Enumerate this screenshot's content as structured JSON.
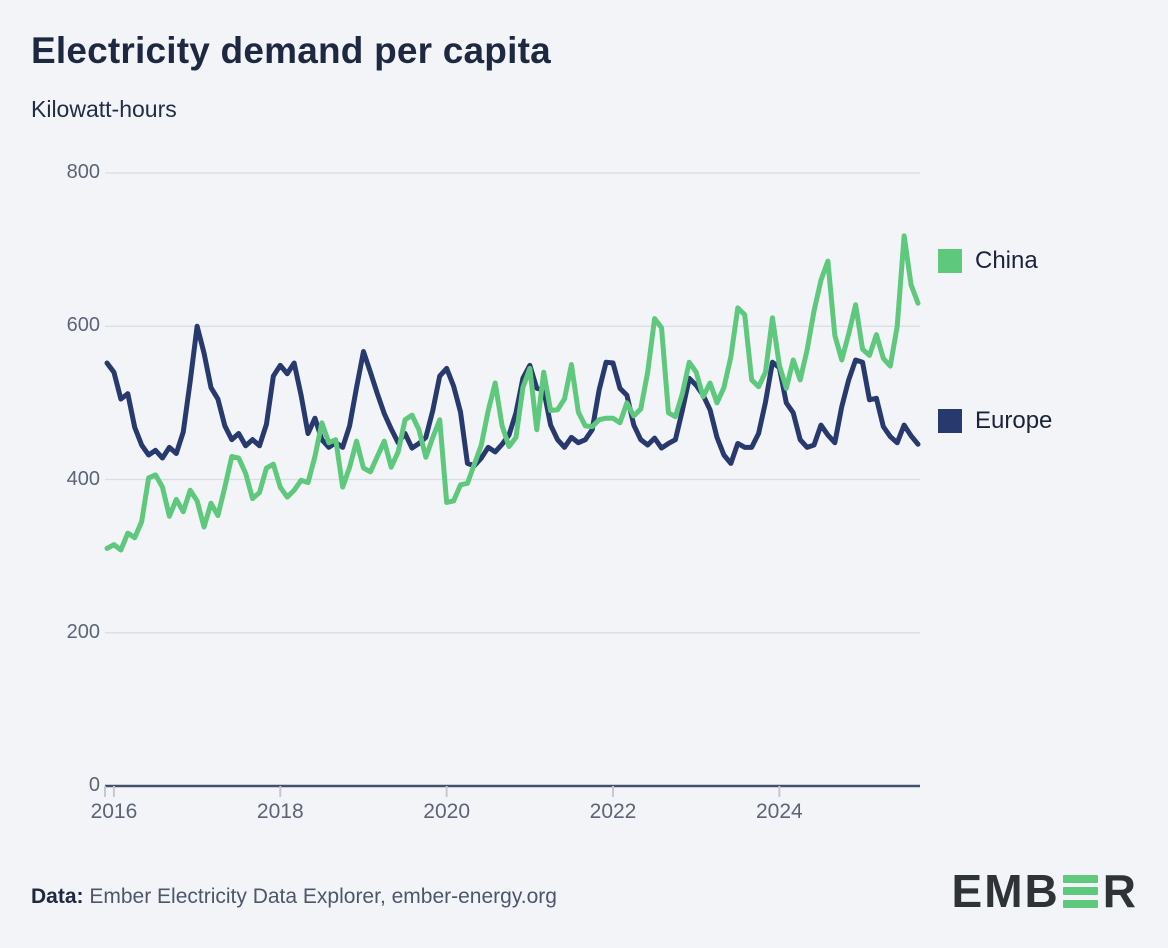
{
  "title": "Electricity demand per capita",
  "subtitle": "Kilowatt-hours",
  "legend": {
    "china": {
      "label": "China",
      "color": "#5ec87d"
    },
    "europe": {
      "label": "Europe",
      "color": "#28396e"
    }
  },
  "footer": {
    "prefix": "Data:",
    "text": " Ember Electricity Data Explorer, ember-energy.org"
  },
  "logo": {
    "text_start": "EMB",
    "text_end": "R",
    "bar_color": "#5ec87d",
    "text_color": "#2e3338"
  },
  "chart_data": {
    "type": "line",
    "title": "Electricity demand per capita",
    "ylabel": "Kilowatt-hours",
    "x_start_month": "2015-12",
    "x_end_month": "2025-09",
    "x_frequency": "monthly",
    "ylim": [
      0,
      800
    ],
    "y_ticks": [
      0,
      200,
      400,
      600,
      800
    ],
    "x_tick_labels": [
      "2016",
      "2018",
      "2020",
      "2022",
      "2024"
    ],
    "x_tick_indices": [
      1,
      25,
      49,
      73,
      97
    ],
    "grid": "horizontal",
    "legend_position": "right",
    "colors": {
      "grid": "#d9dce3",
      "axis": "#43506b",
      "tick": "#c3c8d2"
    },
    "series": [
      {
        "name": "Europe",
        "color": "#28396e",
        "values": [
          552,
          540,
          505,
          512,
          468,
          445,
          432,
          438,
          428,
          442,
          434,
          462,
          528,
          600,
          565,
          520,
          505,
          470,
          452,
          460,
          444,
          452,
          444,
          472,
          535,
          549,
          538,
          552,
          510,
          460,
          480,
          452,
          442,
          448,
          442,
          470,
          520,
          567,
          540,
          512,
          486,
          466,
          448,
          460,
          441,
          447,
          455,
          490,
          535,
          545,
          522,
          488,
          421,
          418,
          428,
          442,
          436,
          446,
          458,
          487,
          532,
          549,
          519,
          517,
          471,
          452,
          442,
          455,
          448,
          452,
          465,
          517,
          553,
          552,
          519,
          510,
          471,
          452,
          445,
          454,
          441,
          447,
          452,
          490,
          532,
          523,
          510,
          491,
          455,
          432,
          421,
          447,
          442,
          442,
          460,
          501,
          553,
          546,
          500,
          487,
          452,
          442,
          445,
          471,
          458,
          448,
          495,
          530,
          556,
          553,
          504,
          506,
          469,
          456,
          448,
          471,
          457,
          446
        ]
      },
      {
        "name": "China",
        "color": "#5ec87d",
        "values": [
          310,
          315,
          308,
          330,
          324,
          345,
          402,
          406,
          390,
          352,
          374,
          358,
          386,
          372,
          338,
          369,
          353,
          390,
          430,
          428,
          408,
          375,
          383,
          415,
          420,
          390,
          377,
          386,
          399,
          396,
          430,
          474,
          448,
          452,
          390,
          416,
          450,
          415,
          410,
          430,
          450,
          416,
          436,
          478,
          484,
          465,
          429,
          455,
          478,
          370,
          372,
          393,
          395,
          420,
          445,
          490,
          526,
          470,
          443,
          455,
          520,
          545,
          465,
          540,
          490,
          491,
          505,
          550,
          488,
          470,
          469,
          478,
          480,
          480,
          474,
          500,
          483,
          492,
          540,
          610,
          598,
          487,
          482,
          512,
          553,
          540,
          508,
          526,
          500,
          520,
          560,
          624,
          615,
          530,
          521,
          540,
          611,
          549,
          519,
          556,
          530,
          569,
          620,
          660,
          685,
          588,
          556,
          590,
          628,
          570,
          562,
          589,
          558,
          548,
          600,
          718,
          654,
          630
        ]
      }
    ]
  }
}
